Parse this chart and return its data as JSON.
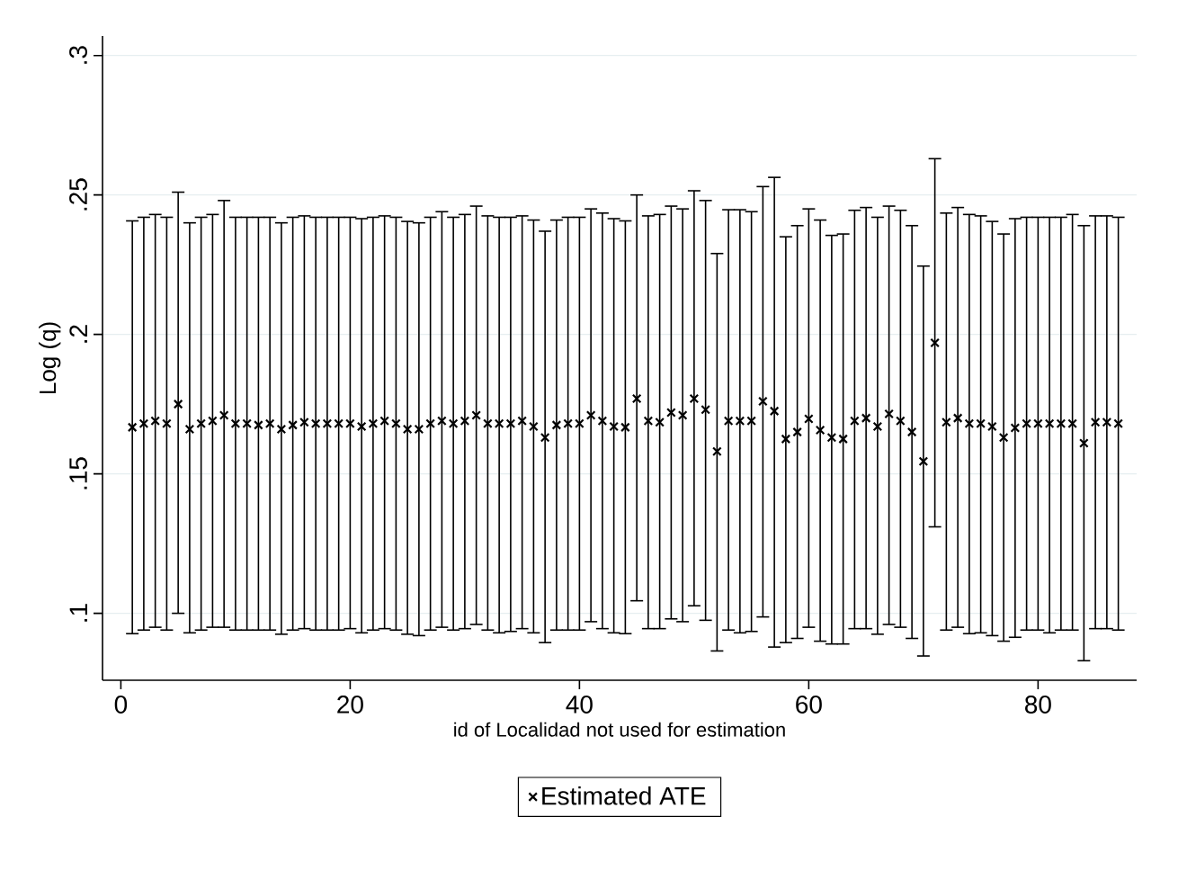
{
  "chart_data": {
    "type": "scatter",
    "xlabel": "id of Localidad not used for estimation",
    "ylabel": "Log (q)",
    "x": [
      1,
      2,
      3,
      4,
      5,
      6,
      7,
      8,
      9,
      10,
      11,
      12,
      13,
      14,
      15,
      16,
      17,
      18,
      19,
      20,
      21,
      22,
      23,
      24,
      25,
      26,
      27,
      28,
      29,
      30,
      31,
      32,
      33,
      34,
      35,
      36,
      37,
      38,
      39,
      40,
      41,
      42,
      43,
      44,
      45,
      46,
      47,
      48,
      49,
      50,
      51,
      52,
      53,
      54,
      55,
      56,
      57,
      58,
      59,
      60,
      61,
      62,
      63,
      64,
      65,
      66,
      67,
      68,
      69,
      70,
      71,
      72,
      73,
      74,
      75,
      76,
      77,
      78,
      79,
      80,
      81,
      82,
      83,
      84,
      85,
      86,
      87
    ],
    "series": [
      {
        "name": "Estimated ATE",
        "color": "#000000",
        "values": [
          0.1667,
          0.168,
          0.169,
          0.168,
          0.175,
          0.166,
          0.168,
          0.169,
          0.171,
          0.168,
          0.168,
          0.1675,
          0.168,
          0.166,
          0.1675,
          0.1685,
          0.168,
          0.168,
          0.168,
          0.168,
          0.167,
          0.168,
          0.169,
          0.168,
          0.166,
          0.166,
          0.168,
          0.169,
          0.168,
          0.169,
          0.171,
          0.168,
          0.168,
          0.168,
          0.169,
          0.167,
          0.163,
          0.1675,
          0.168,
          0.168,
          0.171,
          0.169,
          0.167,
          0.1667,
          0.177,
          0.169,
          0.1685,
          0.172,
          0.171,
          0.177,
          0.173,
          0.158,
          0.169,
          0.169,
          0.169,
          0.176,
          0.1725,
          0.1625,
          0.165,
          0.1697,
          0.1657,
          0.163,
          0.1625,
          0.169,
          0.17,
          0.167,
          0.1715,
          0.169,
          0.165,
          0.1545,
          0.197,
          0.1685,
          0.17,
          0.168,
          0.168,
          0.167,
          0.163,
          0.1665,
          0.168,
          0.168,
          0.168,
          0.168,
          0.168,
          0.161,
          0.1685,
          0.1685,
          0.168
        ],
        "errors": [
          [
            0.0927,
            0.2407
          ],
          [
            0.094,
            0.242
          ],
          [
            0.095,
            0.243
          ],
          [
            0.094,
            0.242
          ],
          [
            0.1,
            0.251
          ],
          [
            0.093,
            0.24
          ],
          [
            0.094,
            0.242
          ],
          [
            0.095,
            0.243
          ],
          [
            0.095,
            0.248
          ],
          [
            0.094,
            0.242
          ],
          [
            0.094,
            0.242
          ],
          [
            0.094,
            0.242
          ],
          [
            0.094,
            0.242
          ],
          [
            0.0925,
            0.24
          ],
          [
            0.094,
            0.242
          ],
          [
            0.0945,
            0.2425
          ],
          [
            0.094,
            0.242
          ],
          [
            0.094,
            0.242
          ],
          [
            0.094,
            0.242
          ],
          [
            0.0945,
            0.242
          ],
          [
            0.093,
            0.2415
          ],
          [
            0.094,
            0.242
          ],
          [
            0.0945,
            0.2425
          ],
          [
            0.094,
            0.242
          ],
          [
            0.0925,
            0.2405
          ],
          [
            0.092,
            0.24
          ],
          [
            0.094,
            0.242
          ],
          [
            0.095,
            0.244
          ],
          [
            0.094,
            0.242
          ],
          [
            0.0945,
            0.243
          ],
          [
            0.096,
            0.246
          ],
          [
            0.094,
            0.2425
          ],
          [
            0.093,
            0.242
          ],
          [
            0.0935,
            0.242
          ],
          [
            0.0945,
            0.2425
          ],
          [
            0.093,
            0.241
          ],
          [
            0.0895,
            0.237
          ],
          [
            0.094,
            0.241
          ],
          [
            0.094,
            0.242
          ],
          [
            0.094,
            0.242
          ],
          [
            0.097,
            0.245
          ],
          [
            0.0945,
            0.2435
          ],
          [
            0.093,
            0.2415
          ],
          [
            0.0927,
            0.2407
          ],
          [
            0.1045,
            0.25
          ],
          [
            0.0945,
            0.2425
          ],
          [
            0.0945,
            0.243
          ],
          [
            0.098,
            0.246
          ],
          [
            0.097,
            0.245
          ],
          [
            0.1027,
            0.2515
          ],
          [
            0.0975,
            0.248
          ],
          [
            0.0865,
            0.229
          ],
          [
            0.094,
            0.2447
          ],
          [
            0.093,
            0.2447
          ],
          [
            0.0935,
            0.244
          ],
          [
            0.0987,
            0.253
          ],
          [
            0.0879,
            0.2563
          ],
          [
            0.0895,
            0.235
          ],
          [
            0.091,
            0.239
          ],
          [
            0.095,
            0.245
          ],
          [
            0.09,
            0.241
          ],
          [
            0.089,
            0.2355
          ],
          [
            0.089,
            0.236
          ],
          [
            0.0945,
            0.2445
          ],
          [
            0.0945,
            0.2455
          ],
          [
            0.0925,
            0.242
          ],
          [
            0.096,
            0.246
          ],
          [
            0.095,
            0.2445
          ],
          [
            0.091,
            0.239
          ],
          [
            0.0847,
            0.2245
          ],
          [
            0.131,
            0.263
          ],
          [
            0.094,
            0.2435
          ],
          [
            0.095,
            0.2455
          ],
          [
            0.0927,
            0.243
          ],
          [
            0.093,
            0.2425
          ],
          [
            0.092,
            0.2405
          ],
          [
            0.09,
            0.236
          ],
          [
            0.0914,
            0.2415
          ],
          [
            0.094,
            0.242
          ],
          [
            0.094,
            0.242
          ],
          [
            0.093,
            0.242
          ],
          [
            0.094,
            0.242
          ],
          [
            0.094,
            0.243
          ],
          [
            0.083,
            0.239
          ],
          [
            0.0945,
            0.2425
          ],
          [
            0.0945,
            0.2425
          ],
          [
            0.094,
            0.242
          ]
        ]
      }
    ],
    "xlim": [
      -1.6,
      88.6
    ],
    "ylim": [
      0.076,
      0.307
    ],
    "xticks": [
      0,
      20,
      40,
      60,
      80
    ],
    "yticks": [
      {
        "value": 0.1,
        "label": ".1"
      },
      {
        "value": 0.15,
        "label": ".15"
      },
      {
        "value": 0.2,
        "label": ".2"
      },
      {
        "value": 0.25,
        "label": ".25"
      },
      {
        "value": 0.3,
        "label": ".3"
      }
    ],
    "grid": "y",
    "legend": "bottom",
    "marker": "cross"
  }
}
